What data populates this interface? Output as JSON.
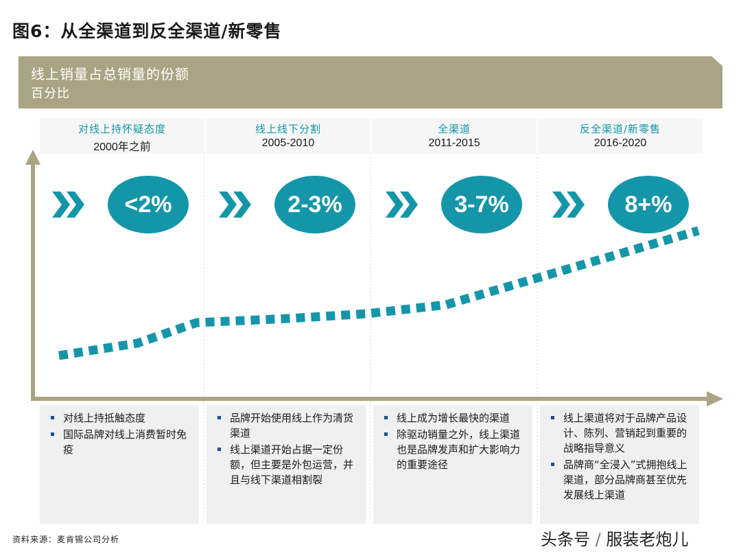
{
  "figure_title": "图6：从全渠道到反全渠道/新零售",
  "banner": {
    "title": "线上销量占总销量的份额",
    "subtitle": "百分比",
    "color": "#a9a483"
  },
  "accent_color": "#1596a8",
  "phases": [
    {
      "name": "对线上持怀疑态度",
      "years": "2000年之前",
      "share": "<2%",
      "notes": [
        "对线上持抵触态度",
        "国际品牌对线上消费暂时免疫"
      ]
    },
    {
      "name": "线上线下分割",
      "years": "2005-2010",
      "share": "2-3%",
      "notes": [
        "品牌开始使用线上作为清货渠道",
        "线上渠道开始占据一定份额，但主要是外包运营，并且与线下渠道相割裂"
      ]
    },
    {
      "name": "全渠道",
      "years": "2011-2015",
      "share": "3-7%",
      "notes": [
        "线上成为增长最快的渠道",
        "除驱动销量之外，线上渠道也是品牌发声和扩大影响力的重要途径"
      ]
    },
    {
      "name": "反全渠道/新零售",
      "years": "2016-2020",
      "share": "8+%",
      "notes": [
        "线上渠道将对于品牌产品设计、陈列、营销起到重要的战略指导意义",
        "品牌商“全浸入”式拥抱线上渠道，部分品牌商甚至优先发展线上渠道"
      ]
    }
  ],
  "source": "资料来源：麦肯锡公司分析",
  "watermark": {
    "left": "头条号",
    "slash": "/",
    "right": "服装老炮儿"
  }
}
